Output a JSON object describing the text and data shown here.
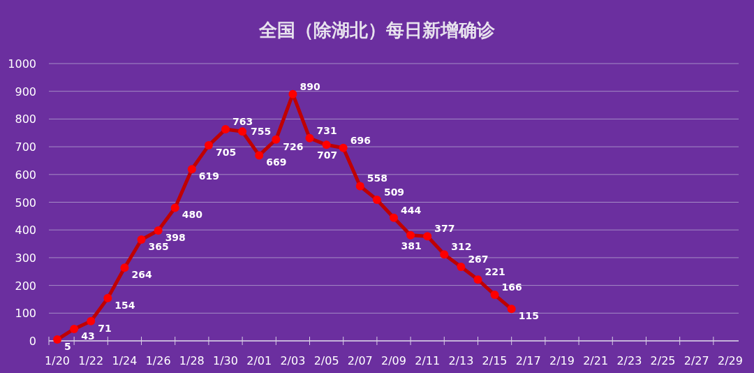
{
  "chart_data": {
    "type": "line",
    "title": "全国（除湖北）每日新增确诊",
    "categories": [
      "1/20",
      null,
      "1/22",
      null,
      "1/24",
      null,
      "1/26",
      null,
      "1/28",
      null,
      "1/30",
      null,
      "2/01",
      null,
      "2/03",
      null,
      "2/05",
      null,
      "2/07",
      null,
      "2/09",
      null,
      "2/11",
      null,
      "2/13",
      null,
      "2/15",
      null,
      "2/17",
      null,
      "2/19",
      null,
      "2/21",
      null,
      "2/23",
      null,
      "2/25",
      null,
      "2/27",
      null,
      "2/29"
    ],
    "series": [
      {
        "color": "#c00000",
        "values": [
          5,
          43,
          71,
          154,
          264,
          365,
          398,
          480,
          619,
          705,
          763,
          755,
          669,
          726,
          890,
          731,
          707,
          696,
          558,
          509,
          444,
          381,
          377,
          312,
          267,
          221,
          166,
          115,
          null,
          null,
          null,
          null,
          null,
          null,
          null,
          null,
          null,
          null,
          null,
          null,
          null
        ]
      }
    ],
    "ylim": [
      0,
      1000
    ],
    "yticks": [
      0,
      100,
      200,
      300,
      400,
      500,
      600,
      700,
      800,
      900,
      1000
    ],
    "grid": "y",
    "marker": "circle",
    "data_labels": true
  }
}
